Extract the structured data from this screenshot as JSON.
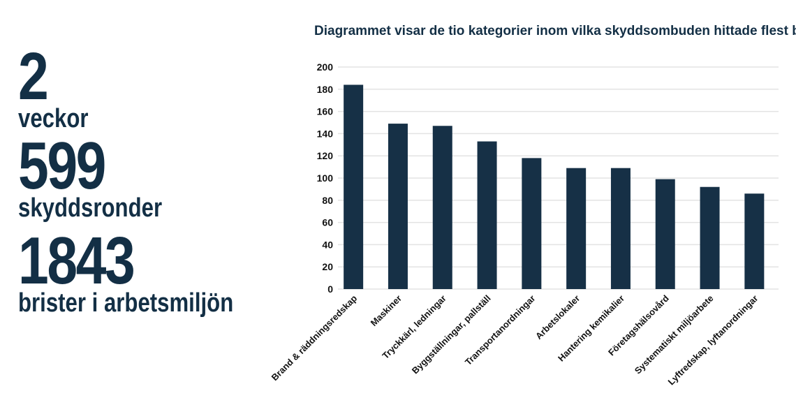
{
  "stats": [
    {
      "value": "2",
      "label": "veckor"
    },
    {
      "value": "599",
      "label": "skyddsronder"
    },
    {
      "value": "1843",
      "label": "brister i arbetsmiljön"
    }
  ],
  "colors": {
    "bar": "#163046",
    "grid": "#e3e3e3"
  },
  "chart_data": {
    "type": "bar",
    "title": "Diagrammet visar de tio kategorier inom vilka skyddsombuden hittade flest brister",
    "xlabel": "",
    "ylabel": "",
    "ylim": [
      0,
      200
    ],
    "yticks": [
      0,
      20,
      40,
      60,
      80,
      100,
      120,
      140,
      160,
      180,
      200
    ],
    "grid": true,
    "categories": [
      "Brand & räddningsredskap",
      "Maskiner",
      "Tryckkärl, ledningar",
      "Byggställningar, pallställ",
      "Transportanordningar",
      "Arbetslokaler",
      "Hantering kemikalier",
      "Företagshälsovård",
      "Systematiskt miljöarbete",
      "Lyftredskap, lyftanordningar"
    ],
    "values": [
      184,
      149,
      147,
      133,
      118,
      109,
      109,
      99,
      92,
      86
    ]
  }
}
